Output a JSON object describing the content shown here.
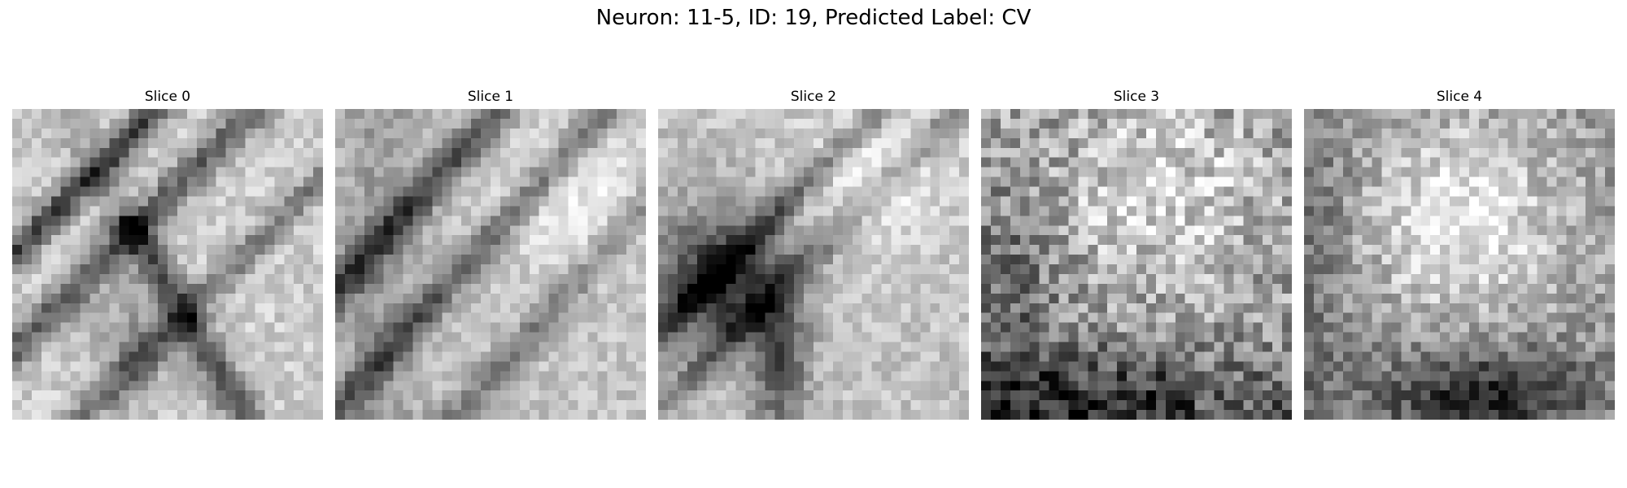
{
  "figure": {
    "title": "Neuron: 11-5, ID: 19, Predicted Label: CV"
  },
  "slices": [
    {
      "title": "Slice 0"
    },
    {
      "title": "Slice 1"
    },
    {
      "title": "Slice 2"
    },
    {
      "title": "Slice 3"
    },
    {
      "title": "Slice 4"
    }
  ],
  "colormap": "gray"
}
